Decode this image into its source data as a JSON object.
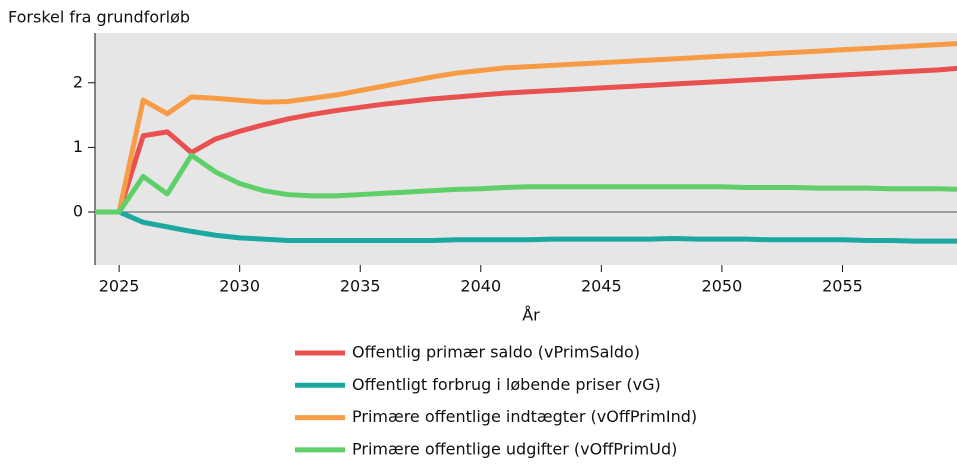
{
  "chart_data": {
    "type": "line",
    "y_label": "Forskel fra grundforløb",
    "x_label": "År",
    "x": [
      2024,
      2025,
      2026,
      2027,
      2028,
      2029,
      2030,
      2031,
      2032,
      2033,
      2034,
      2035,
      2036,
      2037,
      2038,
      2039,
      2040,
      2041,
      2042,
      2043,
      2044,
      2045,
      2046,
      2047,
      2048,
      2049,
      2050,
      2051,
      2052,
      2053,
      2054,
      2055,
      2056,
      2057,
      2058,
      2059,
      2060
    ],
    "series": [
      {
        "name": "Offentlig primær saldo (vPrimSaldo)",
        "color": "#e8514f",
        "values": [
          0,
          0,
          1.18,
          1.24,
          0.92,
          1.13,
          1.25,
          1.35,
          1.44,
          1.51,
          1.57,
          1.62,
          1.67,
          1.71,
          1.75,
          1.78,
          1.81,
          1.84,
          1.86,
          1.88,
          1.9,
          1.92,
          1.94,
          1.96,
          1.98,
          2.0,
          2.02,
          2.04,
          2.06,
          2.08,
          2.1,
          2.12,
          2.14,
          2.16,
          2.18,
          2.2,
          2.23
        ]
      },
      {
        "name": "Offentligt forbrug i løbende priser (vG)",
        "color": "#1aa8a0",
        "values": [
          0,
          0,
          -0.16,
          -0.23,
          -0.3,
          -0.36,
          -0.4,
          -0.42,
          -0.44,
          -0.44,
          -0.44,
          -0.44,
          -0.44,
          -0.44,
          -0.44,
          -0.43,
          -0.43,
          -0.43,
          -0.43,
          -0.42,
          -0.42,
          -0.42,
          -0.42,
          -0.42,
          -0.41,
          -0.42,
          -0.42,
          -0.42,
          -0.43,
          -0.43,
          -0.43,
          -0.43,
          -0.44,
          -0.44,
          -0.45,
          -0.45,
          -0.45
        ]
      },
      {
        "name": "Primære offentlige indtægter (vOffPrimInd)",
        "color": "#f89b45",
        "values": [
          0,
          0,
          1.73,
          1.52,
          1.78,
          1.76,
          1.73,
          1.7,
          1.71,
          1.76,
          1.81,
          1.88,
          1.95,
          2.02,
          2.09,
          2.15,
          2.19,
          2.23,
          2.25,
          2.27,
          2.29,
          2.31,
          2.33,
          2.35,
          2.37,
          2.39,
          2.41,
          2.43,
          2.45,
          2.47,
          2.49,
          2.51,
          2.53,
          2.55,
          2.57,
          2.59,
          2.61
        ]
      },
      {
        "name": "Primære offentlige udgifter (vOffPrimUd)",
        "color": "#5fcf6a",
        "values": [
          0,
          0,
          0.55,
          0.28,
          0.88,
          0.62,
          0.44,
          0.33,
          0.27,
          0.25,
          0.25,
          0.27,
          0.29,
          0.31,
          0.33,
          0.35,
          0.36,
          0.38,
          0.39,
          0.39,
          0.39,
          0.39,
          0.39,
          0.39,
          0.39,
          0.39,
          0.39,
          0.38,
          0.38,
          0.38,
          0.37,
          0.37,
          0.37,
          0.36,
          0.36,
          0.36,
          0.35
        ]
      }
    ],
    "xlim": [
      2024,
      2059.75
    ],
    "xticks": [
      2025,
      2030,
      2035,
      2040,
      2045,
      2050,
      2055
    ],
    "ylim": [
      -0.82,
      2.77
    ],
    "yticks": [
      0,
      1,
      2
    ],
    "legend": "bottom"
  }
}
